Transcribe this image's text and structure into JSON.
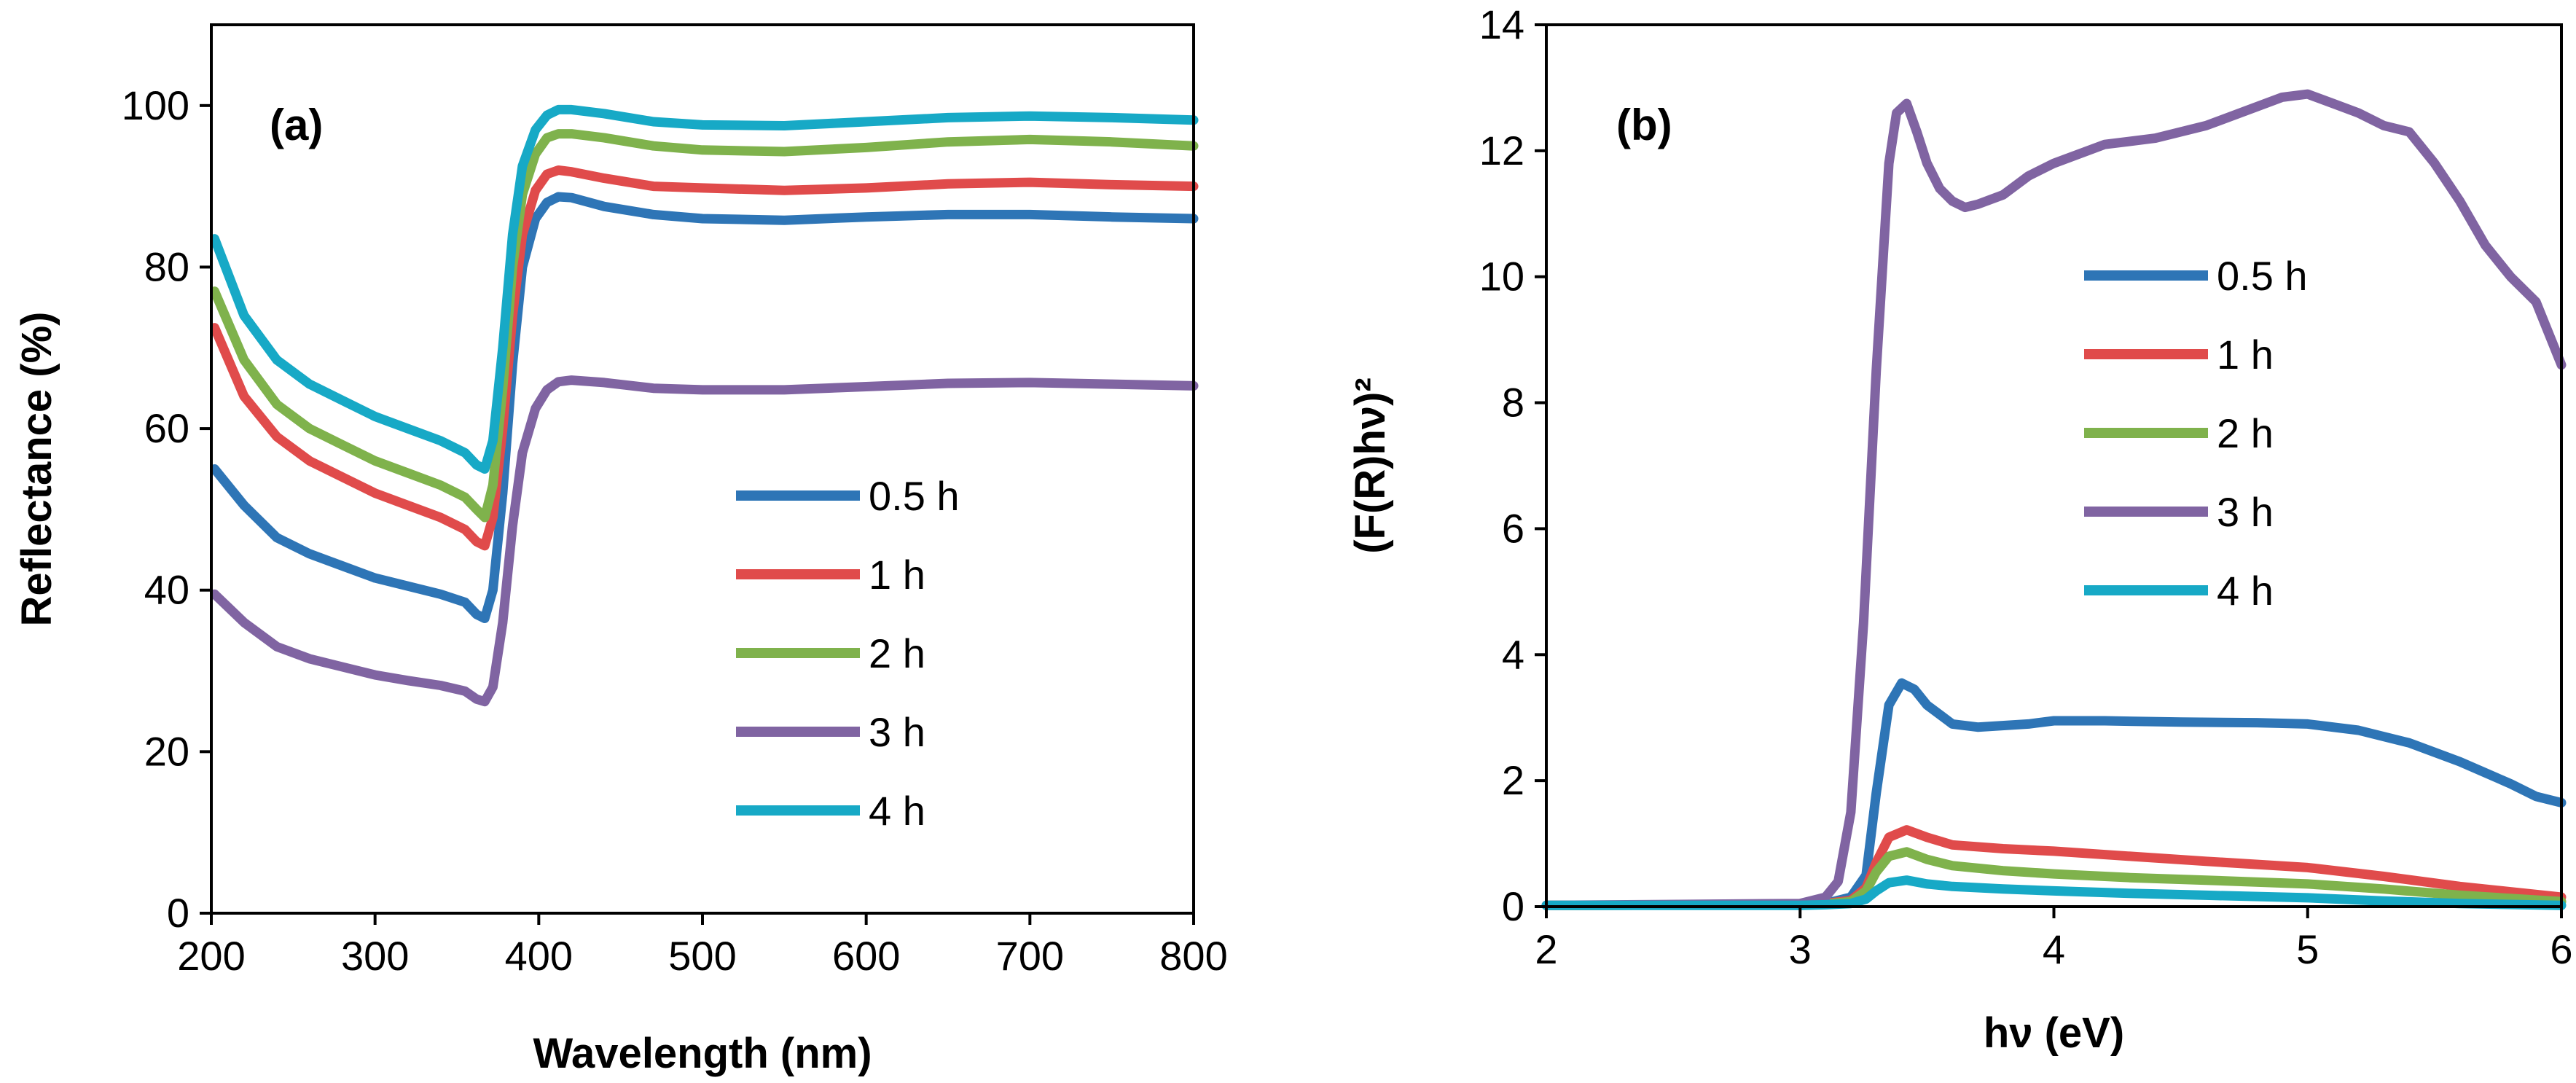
{
  "chart_data": [
    {
      "type": "line",
      "panel_label": "(a)",
      "xlabel": "Wavelength (nm)",
      "ylabel": "Reflectance (%)",
      "xlim": [
        200,
        800
      ],
      "ylim": [
        0,
        110
      ],
      "x_ticks": [
        200,
        300,
        400,
        500,
        600,
        700,
        800
      ],
      "y_ticks": [
        0,
        20,
        40,
        60,
        80,
        100
      ],
      "grid": false,
      "legend_position": "center-right",
      "series": [
        {
          "name": "0.5 h",
          "color": "#2E75B6",
          "x": [
            202,
            220,
            240,
            260,
            280,
            300,
            320,
            340,
            355,
            362,
            367,
            372,
            378,
            384,
            390,
            398,
            405,
            412,
            420,
            440,
            470,
            500,
            550,
            600,
            650,
            700,
            750,
            800
          ],
          "y": [
            55,
            50.5,
            46.5,
            44.5,
            43,
            41.5,
            40.5,
            39.5,
            38.5,
            37,
            36.5,
            40,
            52,
            68,
            80,
            86,
            88,
            88.7,
            88.6,
            87.5,
            86.5,
            86,
            85.8,
            86.2,
            86.5,
            86.5,
            86.2,
            86
          ]
        },
        {
          "name": "1 h",
          "color": "#E04B4B",
          "x": [
            202,
            220,
            240,
            260,
            280,
            300,
            320,
            340,
            355,
            362,
            367,
            372,
            378,
            384,
            390,
            398,
            405,
            412,
            420,
            440,
            470,
            500,
            550,
            600,
            650,
            700,
            750,
            800
          ],
          "y": [
            72.5,
            64,
            59,
            56,
            54,
            52,
            50.5,
            49,
            47.5,
            46,
            45.5,
            49,
            60,
            74,
            84,
            89.5,
            91.5,
            92,
            91.8,
            91,
            90,
            89.8,
            89.5,
            89.8,
            90.3,
            90.5,
            90.2,
            90
          ]
        },
        {
          "name": "2 h",
          "color": "#7FB24C",
          "x": [
            202,
            220,
            240,
            260,
            280,
            300,
            320,
            340,
            355,
            362,
            367,
            372,
            378,
            384,
            390,
            398,
            405,
            412,
            420,
            440,
            470,
            500,
            550,
            600,
            650,
            700,
            750,
            800
          ],
          "y": [
            77,
            68.5,
            63,
            60,
            58,
            56,
            54.5,
            53,
            51.5,
            50,
            49,
            53,
            65,
            80,
            89,
            94,
            96,
            96.5,
            96.5,
            96,
            95,
            94.5,
            94.3,
            94.8,
            95.5,
            95.8,
            95.5,
            95
          ]
        },
        {
          "name": "3 h",
          "color": "#8064A2",
          "x": [
            202,
            220,
            240,
            260,
            280,
            300,
            320,
            340,
            355,
            362,
            367,
            372,
            378,
            384,
            390,
            398,
            405,
            412,
            420,
            440,
            470,
            500,
            550,
            600,
            650,
            700,
            750,
            800
          ],
          "y": [
            39.5,
            36,
            33,
            31.5,
            30.5,
            29.5,
            28.8,
            28.2,
            27.5,
            26.5,
            26.2,
            28,
            36,
            48,
            57,
            62.5,
            64.8,
            65.8,
            66,
            65.7,
            65,
            64.8,
            64.8,
            65.2,
            65.6,
            65.7,
            65.5,
            65.3
          ]
        },
        {
          "name": "4 h",
          "color": "#17A9C6",
          "x": [
            202,
            220,
            240,
            260,
            280,
            300,
            320,
            340,
            355,
            362,
            367,
            372,
            378,
            384,
            390,
            398,
            405,
            412,
            420,
            440,
            470,
            500,
            550,
            600,
            650,
            700,
            750,
            800
          ],
          "y": [
            83.5,
            74,
            68.5,
            65.5,
            63.5,
            61.5,
            60,
            58.5,
            57,
            55.5,
            55,
            58.5,
            70,
            84,
            92.5,
            97,
            98.8,
            99.5,
            99.5,
            99,
            98,
            97.6,
            97.5,
            98,
            98.5,
            98.7,
            98.5,
            98.2
          ]
        }
      ]
    },
    {
      "type": "line",
      "panel_label": "(b)",
      "xlabel": "hν (eV)",
      "ylabel": "(F(R)hν)²",
      "xlim": [
        2,
        6
      ],
      "ylim": [
        0,
        14
      ],
      "x_ticks": [
        2,
        3,
        4,
        5,
        6
      ],
      "y_ticks": [
        0,
        2,
        4,
        6,
        8,
        10,
        12,
        14
      ],
      "grid": false,
      "legend_position": "center-right",
      "series": [
        {
          "name": "0.5 h",
          "color": "#2E75B6",
          "x": [
            2.0,
            3.0,
            3.1,
            3.2,
            3.26,
            3.3,
            3.35,
            3.4,
            3.45,
            3.5,
            3.6,
            3.7,
            3.9,
            4.0,
            4.2,
            4.5,
            4.8,
            5.0,
            5.2,
            5.4,
            5.6,
            5.8,
            5.9,
            6.0
          ],
          "y": [
            0.02,
            0.03,
            0.05,
            0.15,
            0.5,
            1.8,
            3.2,
            3.55,
            3.45,
            3.2,
            2.9,
            2.85,
            2.9,
            2.95,
            2.95,
            2.93,
            2.92,
            2.9,
            2.8,
            2.6,
            2.3,
            1.95,
            1.75,
            1.65
          ]
        },
        {
          "name": "1 h",
          "color": "#E04B4B",
          "x": [
            2.0,
            3.0,
            3.1,
            3.2,
            3.26,
            3.3,
            3.35,
            3.42,
            3.5,
            3.6,
            3.8,
            4.0,
            4.3,
            4.6,
            5.0,
            5.3,
            5.6,
            6.0
          ],
          "y": [
            0.02,
            0.03,
            0.05,
            0.1,
            0.3,
            0.7,
            1.1,
            1.22,
            1.1,
            0.98,
            0.92,
            0.88,
            0.8,
            0.72,
            0.62,
            0.48,
            0.32,
            0.15
          ]
        },
        {
          "name": "2 h",
          "color": "#7FB24C",
          "x": [
            2.0,
            3.0,
            3.1,
            3.2,
            3.26,
            3.3,
            3.35,
            3.42,
            3.5,
            3.6,
            3.8,
            4.0,
            4.3,
            4.6,
            5.0,
            5.3,
            5.6,
            6.0
          ],
          "y": [
            0.02,
            0.03,
            0.04,
            0.08,
            0.25,
            0.55,
            0.8,
            0.87,
            0.75,
            0.65,
            0.57,
            0.52,
            0.46,
            0.42,
            0.36,
            0.28,
            0.18,
            0.08
          ]
        },
        {
          "name": "3 h",
          "color": "#8064A2",
          "x": [
            2.0,
            3.0,
            3.1,
            3.15,
            3.2,
            3.25,
            3.3,
            3.35,
            3.38,
            3.42,
            3.46,
            3.5,
            3.55,
            3.6,
            3.65,
            3.7,
            3.8,
            3.9,
            4.0,
            4.2,
            4.4,
            4.6,
            4.8,
            4.9,
            5.0,
            5.1,
            5.2,
            5.3,
            5.4,
            5.5,
            5.6,
            5.7,
            5.8,
            5.9,
            6.0
          ],
          "y": [
            0.02,
            0.05,
            0.15,
            0.4,
            1.5,
            4.5,
            8.5,
            11.8,
            12.6,
            12.75,
            12.3,
            11.8,
            11.4,
            11.2,
            11.1,
            11.15,
            11.3,
            11.6,
            11.8,
            12.1,
            12.2,
            12.4,
            12.7,
            12.85,
            12.9,
            12.75,
            12.6,
            12.4,
            12.3,
            11.8,
            11.2,
            10.5,
            10.0,
            9.6,
            8.6
          ]
        },
        {
          "name": "4 h",
          "color": "#17A9C6",
          "x": [
            2.0,
            3.0,
            3.1,
            3.2,
            3.26,
            3.3,
            3.35,
            3.42,
            3.5,
            3.6,
            3.8,
            4.0,
            4.3,
            4.6,
            5.0,
            5.3,
            5.6,
            6.0
          ],
          "y": [
            0.02,
            0.02,
            0.03,
            0.05,
            0.12,
            0.25,
            0.38,
            0.42,
            0.36,
            0.32,
            0.28,
            0.25,
            0.21,
            0.18,
            0.14,
            0.09,
            0.05,
            0.02
          ]
        }
      ]
    }
  ]
}
